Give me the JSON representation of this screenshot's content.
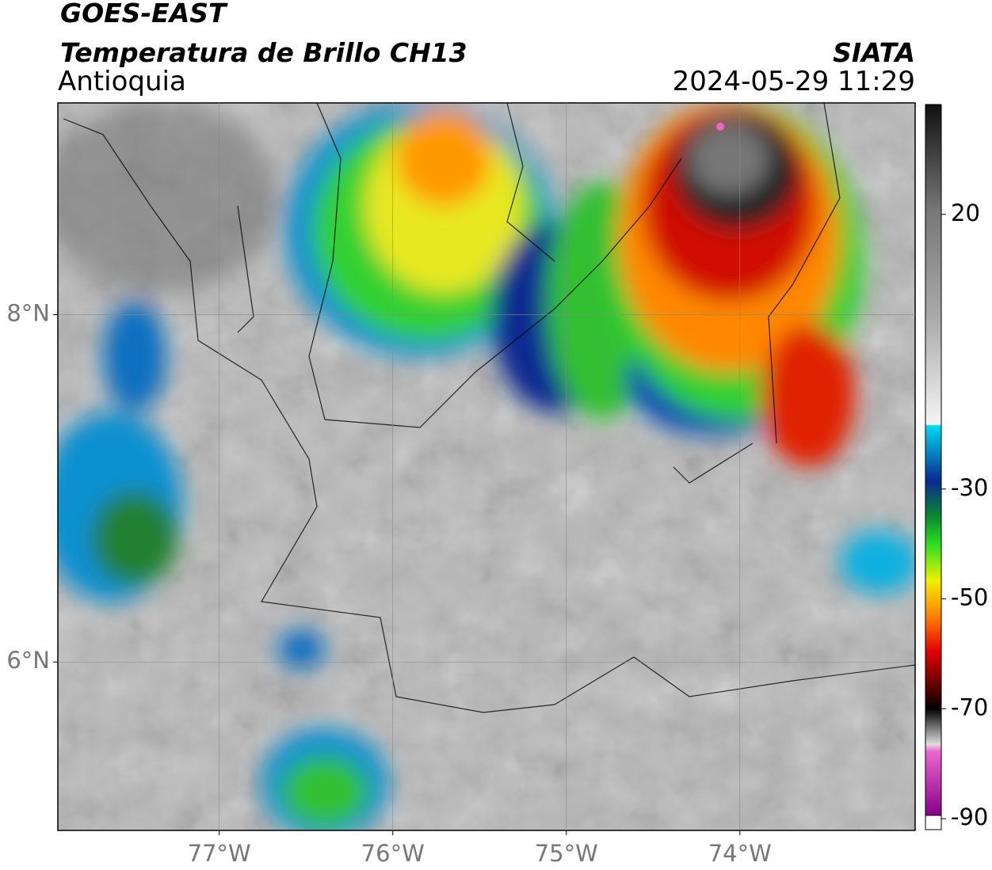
{
  "header": {
    "satellite": "GOES-EAST",
    "product": "Temperatura de Brillo CH13",
    "region": "Antioquia",
    "source": "SIATA",
    "timestamp": "2024-05-29 11:29"
  },
  "map": {
    "xlim": [
      -77.93,
      -72.99
    ],
    "ylim": [
      5.03,
      9.22
    ],
    "xticks": [
      {
        "value": -77,
        "label": "77°W"
      },
      {
        "value": -76,
        "label": "76°W"
      },
      {
        "value": -75,
        "label": "75°W"
      },
      {
        "value": -74,
        "label": "74°W"
      }
    ],
    "yticks": [
      {
        "value": 8,
        "label": "8°N"
      },
      {
        "value": 6,
        "label": "6°N"
      }
    ],
    "grid": true
  },
  "colorbar": {
    "lim": [
      -92,
      40
    ],
    "ticks": [
      20,
      -30,
      -50,
      -70,
      -90
    ]
  }
}
